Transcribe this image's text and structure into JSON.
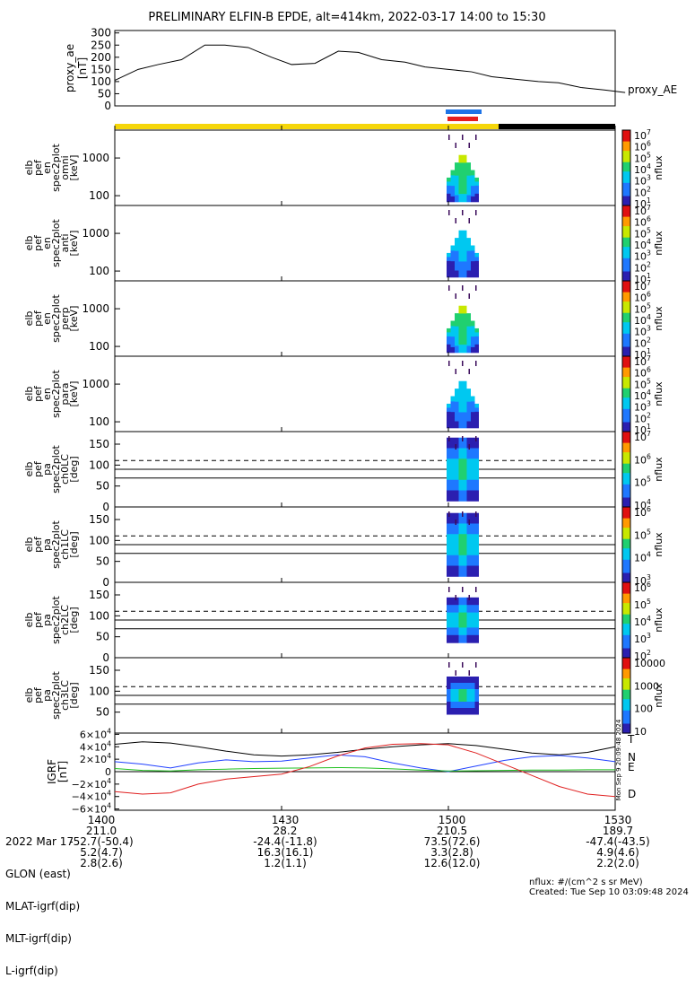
{
  "title": "PRELIMINARY ELFIN-B EPDE, alt=414km, 2022-03-17 14:00 to 15:30",
  "colors": {
    "science_bar": "#f5d60a",
    "black_bar": "#000000",
    "blue_marker": "#1e73e6",
    "red_marker": "#e61e1e",
    "T": "#000000",
    "N": "#2040ff",
    "E": "#20c020",
    "D": "#e02020"
  },
  "chart_data": [
    {
      "id": "proxy_ae",
      "type": "line",
      "ylabel": "proxy_ae\n[nT]",
      "series_label": "proxy_AE",
      "ylim": [
        0,
        310
      ],
      "yticks": [
        "300",
        "250",
        "200",
        "150",
        "100",
        "50",
        "0"
      ],
      "x": [
        14.0,
        14.07,
        14.13,
        14.2,
        14.27,
        14.33,
        14.4,
        14.47,
        14.53,
        14.6,
        14.67,
        14.73,
        14.8,
        14.87,
        14.93,
        15.0,
        15.07,
        15.13,
        15.2,
        15.27,
        15.33,
        15.4,
        15.47,
        15.53
      ],
      "values": [
        105,
        150,
        170,
        190,
        250,
        250,
        240,
        200,
        170,
        175,
        225,
        220,
        190,
        180,
        160,
        150,
        140,
        120,
        110,
        100,
        95,
        75,
        65,
        55
      ]
    },
    {
      "id": "en_omni",
      "type": "heatmap",
      "ylabel": "elb\npef\nen\nspec2plot\nomni\n[keV]",
      "yticks": [
        "1000",
        "100"
      ],
      "cbar_unit": "nflux",
      "cbar_ticks": [
        "10^7",
        "10^6",
        "10^5",
        "10^4",
        "10^3",
        "10^2",
        "10^1"
      ]
    },
    {
      "id": "en_anti",
      "type": "heatmap",
      "ylabel": "elb\npef\nen\nspec2plot\nanti\n[keV]",
      "yticks": [
        "1000",
        "100"
      ],
      "cbar_unit": "nflux",
      "cbar_ticks": [
        "10^7",
        "10^6",
        "10^5",
        "10^4",
        "10^3",
        "10^2",
        "10^1"
      ]
    },
    {
      "id": "en_perp",
      "type": "heatmap",
      "ylabel": "elb\npef\nen\nspec2plot\nperp\n[keV]",
      "yticks": [
        "1000",
        "100"
      ],
      "cbar_unit": "nflux",
      "cbar_ticks": [
        "10^7",
        "10^6",
        "10^5",
        "10^4",
        "10^3",
        "10^2",
        "10^1"
      ]
    },
    {
      "id": "en_para",
      "type": "heatmap",
      "ylabel": "elb\npef\nen\nspec2plot\npara\n[keV]",
      "yticks": [
        "1000",
        "100"
      ],
      "cbar_unit": "nflux",
      "cbar_ticks": [
        "10^7",
        "10^6",
        "10^5",
        "10^4",
        "10^3",
        "10^2",
        "10^1"
      ]
    },
    {
      "id": "pa_ch0",
      "type": "heatmap",
      "ylabel": "elb\npef\npa\nspec2plot\nch0LC\n[deg]",
      "yticks": [
        "150",
        "100",
        "50",
        "0"
      ],
      "cbar_unit": "nflux",
      "cbar_ticks": [
        "10^7",
        "10^6",
        "10^5",
        "10^4"
      ]
    },
    {
      "id": "pa_ch1",
      "type": "heatmap",
      "ylabel": "elb\npef\npa\nspec2plot\nch1LC\n[deg]",
      "yticks": [
        "150",
        "100",
        "50",
        "0"
      ],
      "cbar_unit": "nflux",
      "cbar_ticks": [
        "10^6",
        "10^5",
        "10^4",
        "10^3"
      ]
    },
    {
      "id": "pa_ch2",
      "type": "heatmap",
      "ylabel": "elb\npef\npa\nspec2plot\nch2LC\n[deg]",
      "yticks": [
        "150",
        "100",
        "50",
        "0"
      ],
      "cbar_unit": "nflux",
      "cbar_ticks": [
        "10^6",
        "10^5",
        "10^4",
        "10^3",
        "10^2"
      ]
    },
    {
      "id": "pa_ch3",
      "type": "heatmap",
      "ylabel": "elb\npef\npa\nspec2plot\nch3LC\n[deg]",
      "yticks": [
        "150",
        "100",
        "50"
      ],
      "cbar_unit": "nflux",
      "cbar_ticks": [
        "10000",
        "1000",
        "100",
        "10"
      ]
    },
    {
      "id": "igrf",
      "type": "line",
      "ylabel": "IGRF\n[nT]",
      "yticks": [
        "6×10^4",
        "4×10^4",
        "2×10^4",
        "0",
        "−2×10^4",
        "−4×10^4",
        "−6×10^4"
      ],
      "ylim": [
        -62000,
        62000
      ],
      "x": [
        14.0,
        14.083,
        14.167,
        14.25,
        14.333,
        14.417,
        14.5,
        14.583,
        14.667,
        14.75,
        14.833,
        14.917,
        15.0,
        15.083,
        15.167,
        15.25,
        15.333,
        15.417,
        15.5
      ],
      "series": [
        {
          "name": "T",
          "values": [
            44000,
            48000,
            46000,
            40000,
            33000,
            27000,
            25000,
            27000,
            31000,
            36000,
            40000,
            43000,
            45000,
            42000,
            36000,
            30000,
            27000,
            31000,
            40000
          ]
        },
        {
          "name": "N",
          "values": [
            16000,
            12000,
            6000,
            14000,
            19000,
            16000,
            17000,
            22000,
            27000,
            24000,
            14000,
            6000,
            0,
            9000,
            18000,
            24000,
            26000,
            22000,
            16000
          ]
        },
        {
          "name": "E",
          "values": [
            5000,
            2000,
            1000,
            3000,
            4000,
            5000,
            5500,
            6000,
            6500,
            6000,
            4500,
            2500,
            1000,
            1500,
            2000,
            2500,
            2500,
            3000,
            3000
          ]
        },
        {
          "name": "D",
          "values": [
            -32000,
            -36000,
            -34000,
            -20000,
            -12000,
            -8000,
            -4000,
            8000,
            25000,
            38000,
            44000,
            45000,
            43000,
            30000,
            12000,
            -6000,
            -24000,
            -36000,
            -40000
          ]
        }
      ]
    }
  ],
  "igrf_legend": [
    "T",
    "N",
    "E",
    "D"
  ],
  "xaxis": {
    "row_labels": [
      "2022 Mar 17",
      "GLON (east)",
      "MLAT-igrf(dip)",
      "MLT-igrf(dip)",
      "L-igrf(dip)"
    ],
    "columns": [
      [
        "1400",
        "211.0",
        "-52.7(-50.4)",
        "5.2(4.7)",
        "2.8(2.6)"
      ],
      [
        "1430",
        "28.2",
        "-24.4(-11.8)",
        "16.3(16.1)",
        "1.2(1.1)"
      ],
      [
        "1500",
        "210.5",
        "73.5(72.6)",
        "3.3(2.8)",
        "12.6(12.0)"
      ],
      [
        "1530",
        "189.7",
        "-47.4(-43.5)",
        "4.9(4.6)",
        "2.2(2.0)"
      ]
    ]
  },
  "footnote_units": "nflux: #/(cm^2 s sr MeV)",
  "footnote_created": "Created: Tue Sep 10 03:09:48 2024",
  "side_stamp": "Mon Sep 9 20:09:48 2024"
}
